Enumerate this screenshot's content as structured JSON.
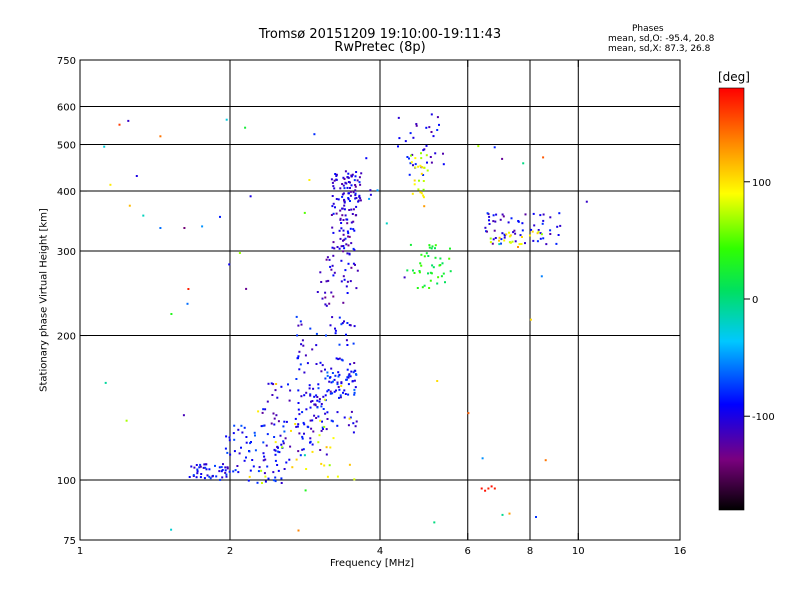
{
  "chart_data": {
    "type": "scatter",
    "title": "Tromsø 20151209 19:10:00-19:11:43",
    "subtitle": "RwPretec (8p)",
    "xlabel": "Frequency [MHz]",
    "ylabel": "Stationary phase Virtual Height [km]",
    "x_scale": "log",
    "y_scale": "log",
    "xlim": [
      1,
      16
    ],
    "ylim": [
      75,
      750
    ],
    "x_ticks": [
      1,
      2,
      4,
      6,
      8,
      10,
      16
    ],
    "y_ticks": [
      75,
      100,
      200,
      300,
      400,
      500,
      600,
      750
    ],
    "grid_x": [
      2,
      4,
      6,
      8,
      10
    ],
    "grid_y": [
      100,
      200,
      300,
      400,
      500,
      600
    ],
    "colorbar": {
      "label": "[deg]",
      "range": [
        -180,
        180
      ],
      "ticks": [
        -100,
        0,
        100
      ]
    },
    "stats": {
      "header": "Phases",
      "o_mode": "mean, sd,O: -95.4, 20.8",
      "x_mode": "mean, sd,X:  87.3, 26.8"
    },
    "clusters": [
      {
        "f": [
          1.65,
          2.0
        ],
        "h": [
          100,
          108
        ],
        "phase": -95,
        "n": 45
      },
      {
        "f": [
          1.95,
          2.6
        ],
        "h": [
          98,
          130
        ],
        "phase": -90,
        "n": 70
      },
      {
        "f": [
          2.3,
          3.2
        ],
        "h": [
          110,
          160
        ],
        "phase": -100,
        "n": 80
      },
      {
        "f": [
          2.7,
          3.6
        ],
        "h": [
          125,
          220
        ],
        "phase": -95,
        "n": 110
      },
      {
        "f": [
          3.1,
          3.6
        ],
        "h": [
          150,
          170
        ],
        "phase": -85,
        "n": 40
      },
      {
        "f": [
          3.0,
          3.6
        ],
        "h": [
          230,
          300
        ],
        "phase": -110,
        "n": 40
      },
      {
        "f": [
          3.2,
          3.6
        ],
        "h": [
          300,
          440
        ],
        "phase": -105,
        "n": 100
      },
      {
        "f": [
          3.35,
          3.7
        ],
        "h": [
          380,
          440
        ],
        "phase": -100,
        "n": 30
      },
      {
        "f": [
          4.3,
          5.4
        ],
        "h": [
          430,
          580
        ],
        "phase": -100,
        "n": 35
      },
      {
        "f": [
          4.6,
          5.0
        ],
        "h": [
          380,
          480
        ],
        "phase": 80,
        "n": 25
      },
      {
        "f": [
          4.5,
          5.6
        ],
        "h": [
          250,
          310
        ],
        "phase": 30,
        "n": 40
      },
      {
        "f": [
          6.5,
          9.2
        ],
        "h": [
          310,
          360
        ],
        "phase": -100,
        "n": 60
      },
      {
        "f": [
          6.3,
          8.6
        ],
        "h": [
          310,
          330
        ],
        "phase": 90,
        "n": 20
      },
      {
        "f": [
          2.0,
          3.6
        ],
        "h": [
          100,
          160
        ],
        "phase": 90,
        "n": 30
      },
      {
        "f": [
          1.1,
          8.8
        ],
        "h": [
          78,
          580
        ],
        "phase": 0,
        "n": 50
      }
    ],
    "points": [
      {
        "x": 6.4,
        "y": 96,
        "phase": 175
      },
      {
        "x": 6.5,
        "y": 95,
        "phase": 175
      },
      {
        "x": 6.6,
        "y": 96,
        "phase": 170
      },
      {
        "x": 6.7,
        "y": 97,
        "phase": 175
      },
      {
        "x": 6.8,
        "y": 96,
        "phase": 170
      },
      {
        "x": 1.2,
        "y": 550,
        "phase": 160
      },
      {
        "x": 1.45,
        "y": 520,
        "phase": 140
      },
      {
        "x": 8.5,
        "y": 470,
        "phase": 150
      },
      {
        "x": 8.6,
        "y": 110,
        "phase": 140
      },
      {
        "x": 1.65,
        "y": 250,
        "phase": 170
      },
      {
        "x": 1.25,
        "y": 560,
        "phase": -110
      },
      {
        "x": 1.3,
        "y": 430,
        "phase": -100
      },
      {
        "x": 2.2,
        "y": 390,
        "phase": -100
      },
      {
        "x": 10.4,
        "y": 380,
        "phase": -110
      },
      {
        "x": 1.62,
        "y": 335,
        "phase": -140
      },
      {
        "x": 1.45,
        "y": 335,
        "phase": -60
      }
    ]
  }
}
